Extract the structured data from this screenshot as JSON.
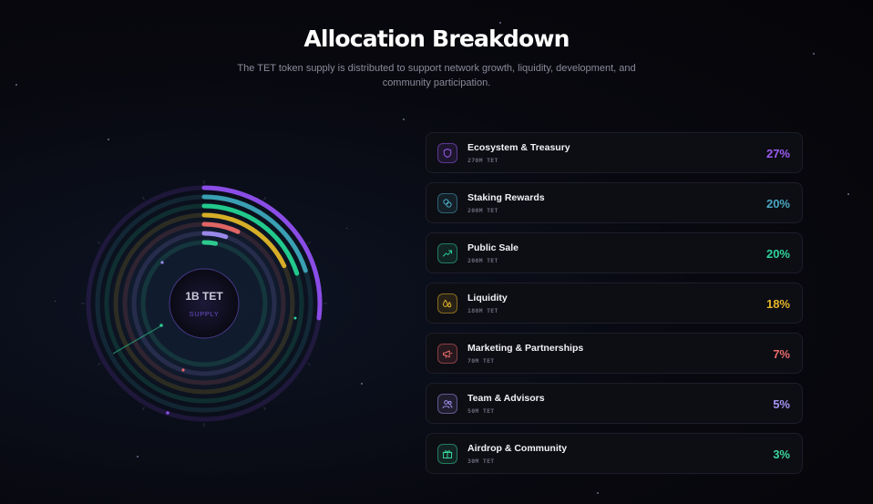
{
  "header": {
    "title": "Allocation Breakdown",
    "subtitle": "The TET token supply is distributed to support network growth, liquidity, development, and community participation."
  },
  "chart_data": {
    "type": "radial-bar",
    "center_value": "1B TET",
    "center_label": "SUPPLY",
    "categories": [
      "Ecosystem & Treasury",
      "Staking Rewards",
      "Public Sale",
      "Liquidity",
      "Marketing & Partnerships",
      "Team & Advisors",
      "Airdrop & Community"
    ],
    "values": [
      27,
      20,
      20,
      18,
      7,
      5,
      3
    ],
    "unit": "%",
    "colors": [
      "#8a4de6",
      "#3a9fb2",
      "#22c98c",
      "#d6ae27",
      "#e06565",
      "#9a88ea",
      "#2ec98f"
    ]
  },
  "allocations": [
    {
      "name": "Ecosystem & Treasury",
      "amount": "270M TET",
      "percent": "27%",
      "color": "#9a5cf0",
      "icon": "shield-icon"
    },
    {
      "name": "Staking Rewards",
      "amount": "200M TET",
      "percent": "20%",
      "color": "#4aa8c0",
      "icon": "coins-icon"
    },
    {
      "name": "Public Sale",
      "amount": "200M TET",
      "percent": "20%",
      "color": "#2ed39a",
      "icon": "trend-up-icon"
    },
    {
      "name": "Liquidity",
      "amount": "180M TET",
      "percent": "18%",
      "color": "#e6b628",
      "icon": "droplets-icon"
    },
    {
      "name": "Marketing & Partnerships",
      "amount": "70M TET",
      "percent": "7%",
      "color": "#e86a6a",
      "icon": "megaphone-icon"
    },
    {
      "name": "Team & Advisors",
      "amount": "50M TET",
      "percent": "5%",
      "color": "#a592f2",
      "icon": "users-icon"
    },
    {
      "name": "Airdrop & Community",
      "amount": "30M TET",
      "percent": "3%",
      "color": "#3ad49b",
      "icon": "gift-icon"
    }
  ]
}
